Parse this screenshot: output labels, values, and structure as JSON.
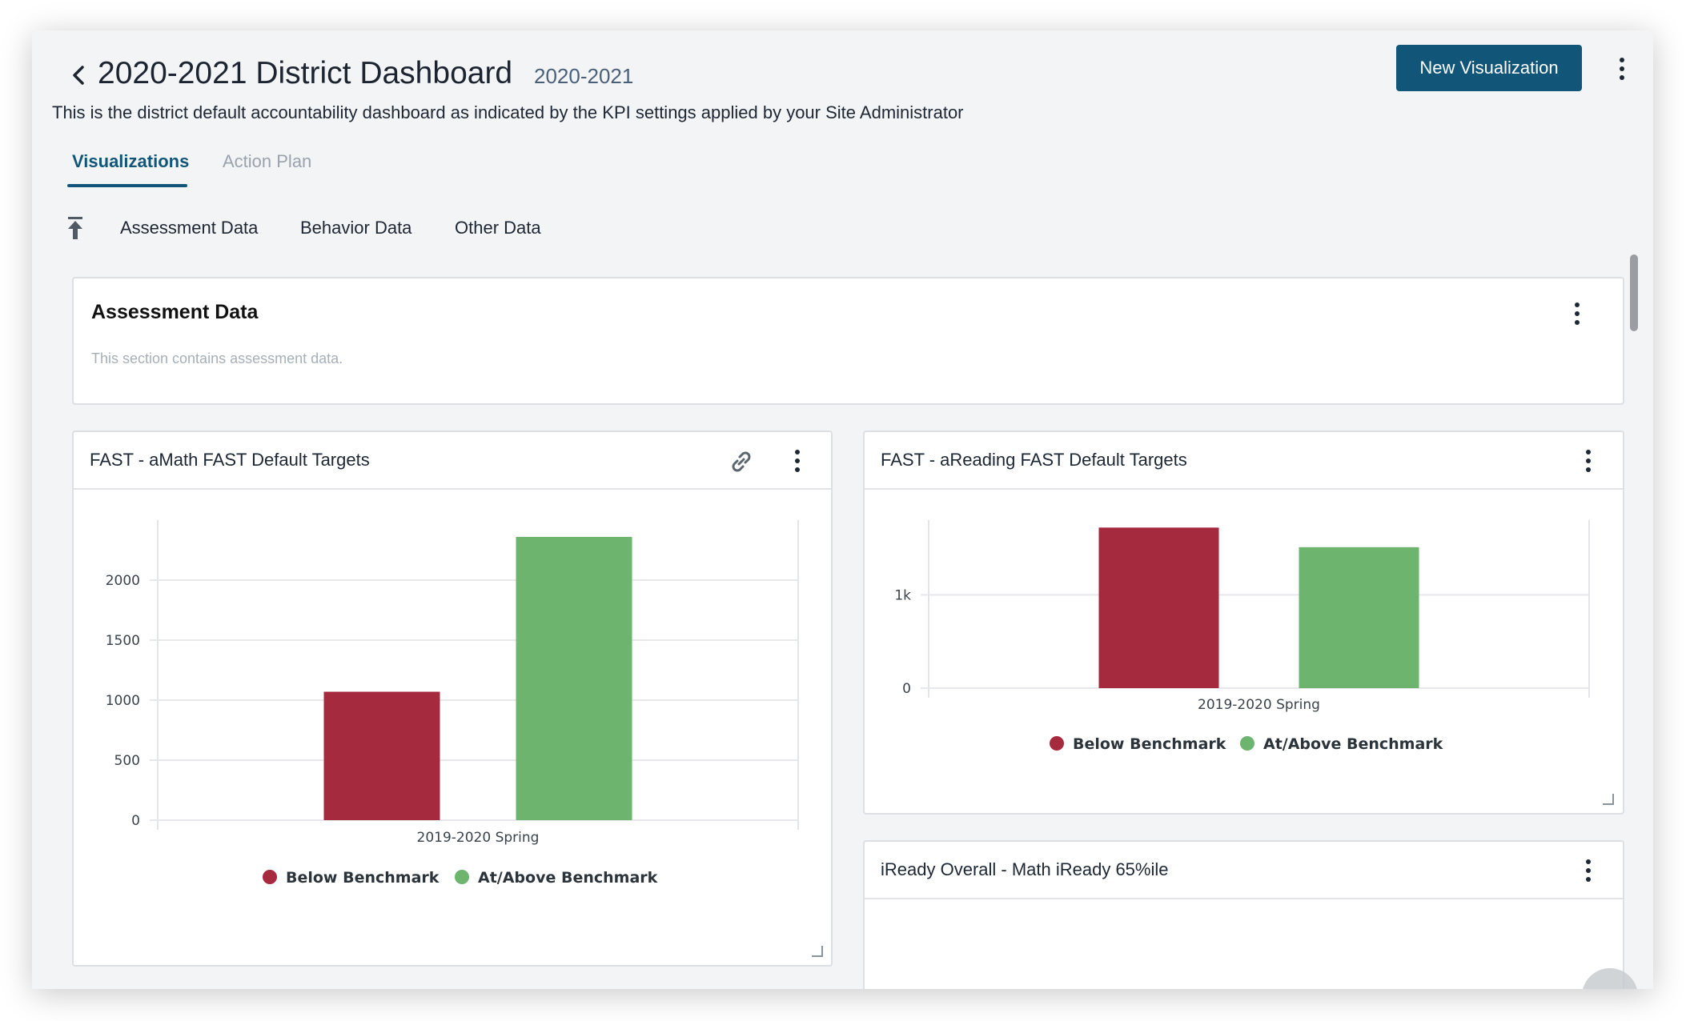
{
  "header": {
    "title": "2020-2021 District Dashboard",
    "subtitle": "2020-2021",
    "new_viz_label": "New Visualization",
    "description": "This is the district default accountability dashboard as indicated by the KPI settings applied by your Site Administrator"
  },
  "tabs": [
    {
      "label": "Visualizations",
      "active": true
    },
    {
      "label": "Action Plan",
      "active": false
    }
  ],
  "section_nav": [
    "Assessment Data",
    "Behavior Data",
    "Other Data"
  ],
  "section": {
    "title": "Assessment Data",
    "description": "This section contains assessment data."
  },
  "cards": [
    {
      "title": "FAST - aMath FAST Default Targets"
    },
    {
      "title": "FAST - aReading FAST Default Targets"
    },
    {
      "title": "iReady Overall - Math iReady 65%ile"
    }
  ],
  "colors": {
    "primary": "#115579",
    "below": "#a62a3e",
    "above": "#6db46f"
  },
  "chart_data": [
    {
      "type": "bar",
      "categories": [
        "2019-2020 Spring"
      ],
      "series": [
        {
          "name": "Below Benchmark",
          "values": [
            1070
          ]
        },
        {
          "name": "At/Above Benchmark",
          "values": [
            2360
          ]
        }
      ],
      "yticks": [
        "0",
        "500",
        "1000",
        "1500",
        "2000"
      ],
      "ylim": [
        0,
        2500
      ],
      "grid": true,
      "legend": "bottom"
    },
    {
      "type": "bar",
      "categories": [
        "2019-2020 Spring"
      ],
      "series": [
        {
          "name": "Below Benchmark",
          "values": [
            1720
          ]
        },
        {
          "name": "At/Above Benchmark",
          "values": [
            1510
          ]
        }
      ],
      "yticks": [
        "0",
        "1k"
      ],
      "ylim": [
        0,
        1800
      ],
      "grid": true,
      "legend": "bottom"
    }
  ]
}
